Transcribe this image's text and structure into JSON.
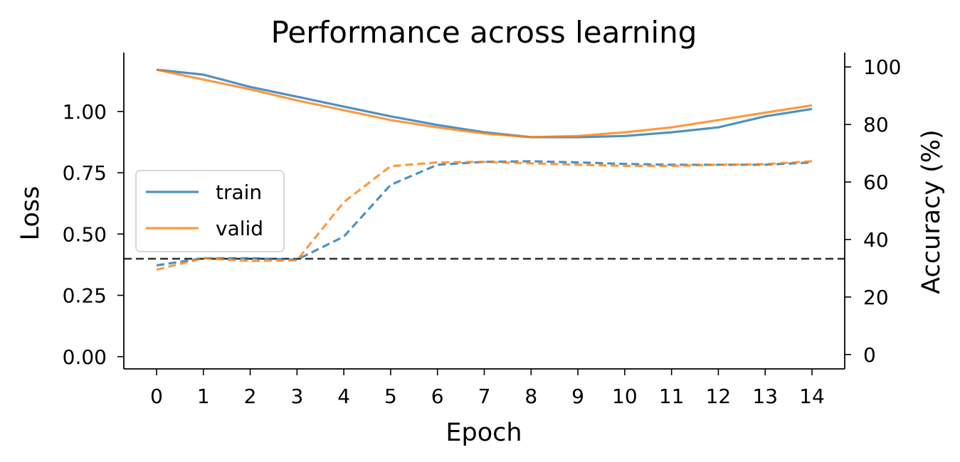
{
  "chart_data": {
    "type": "line",
    "title": "Performance across learning",
    "xlabel": "Epoch",
    "ylabel_left": "Loss",
    "ylabel_right": "Accuracy (%)",
    "x": [
      0,
      1,
      2,
      3,
      4,
      5,
      6,
      7,
      8,
      9,
      10,
      11,
      12,
      13,
      14
    ],
    "xticks": [
      "0",
      "1",
      "2",
      "3",
      "4",
      "5",
      "6",
      "7",
      "8",
      "9",
      "10",
      "11",
      "12",
      "13",
      "14"
    ],
    "ylim_left": [
      -0.05,
      1.24
    ],
    "yticks_left": [
      "0.00",
      "0.25",
      "0.50",
      "0.75",
      "1.00"
    ],
    "yticks_left_values": [
      0,
      0.25,
      0.5,
      0.75,
      1.0
    ],
    "ylim_right": [
      -5,
      105
    ],
    "yticks_right": [
      "0",
      "20",
      "40",
      "60",
      "80",
      "100"
    ],
    "yticks_right_values": [
      0,
      20,
      40,
      60,
      80,
      100
    ],
    "legend": {
      "position": "center-left",
      "entries": [
        "train",
        "valid"
      ]
    },
    "chance_level": {
      "axis": "right",
      "value": 33.3,
      "style": "dashed",
      "color": "#333333"
    },
    "series": [
      {
        "name": "train",
        "metric": "loss",
        "axis": "left",
        "style": "solid",
        "color": "#1f77b4",
        "values": [
          1.17,
          1.15,
          1.1,
          1.06,
          1.02,
          0.98,
          0.945,
          0.915,
          0.895,
          0.895,
          0.9,
          0.915,
          0.935,
          0.98,
          1.01
        ]
      },
      {
        "name": "valid",
        "metric": "loss",
        "axis": "left",
        "style": "solid",
        "color": "#ff7f0e",
        "values": [
          1.17,
          1.13,
          1.09,
          1.045,
          1.005,
          0.965,
          0.935,
          0.91,
          0.895,
          0.9,
          0.915,
          0.935,
          0.965,
          0.995,
          1.025
        ]
      },
      {
        "name": "train",
        "metric": "accuracy",
        "axis": "right",
        "style": "dashed",
        "color": "#1f77b4",
        "values": [
          31,
          33.5,
          33.5,
          33,
          41,
          59,
          66,
          67,
          67.2,
          66.8,
          66.3,
          66,
          66,
          66,
          66.8
        ]
      },
      {
        "name": "valid",
        "metric": "accuracy",
        "axis": "right",
        "style": "dashed",
        "color": "#ff7f0e",
        "values": [
          29.5,
          33.5,
          32.5,
          32.8,
          53,
          65.5,
          66.8,
          67,
          66.5,
          66,
          65.6,
          65.6,
          66,
          66.2,
          67.2
        ]
      }
    ]
  }
}
